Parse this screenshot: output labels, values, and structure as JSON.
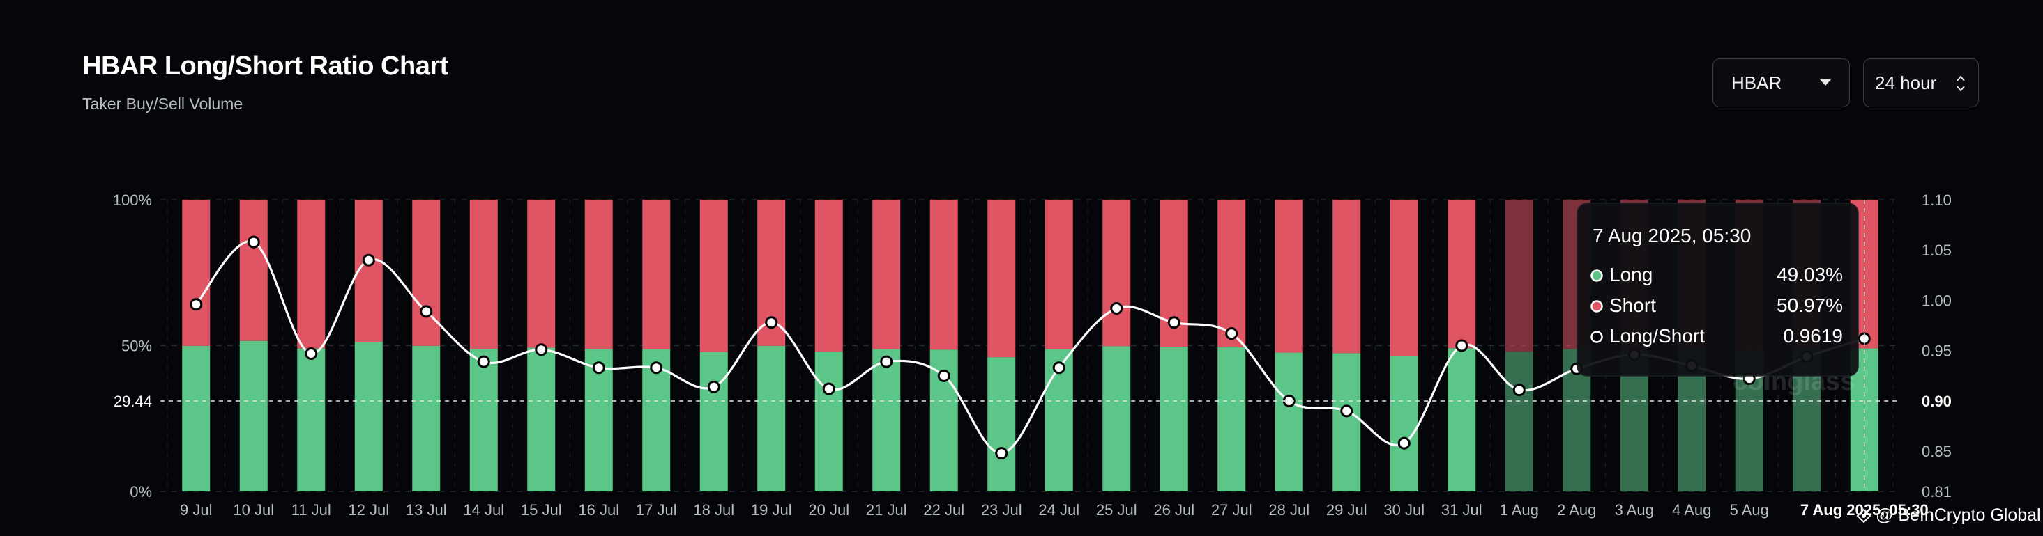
{
  "header": {
    "title": "HBAR Long/Short Ratio Chart",
    "subtitle": "Taker Buy/Sell Volume"
  },
  "controls": {
    "coin": "HBAR",
    "range": "24 hour"
  },
  "colors": {
    "long": "#5cc688",
    "short": "#e05563",
    "line": "#ffffff",
    "background": "#05060a"
  },
  "chart_data": {
    "type": "bar",
    "categories": [
      "9 Jul",
      "10 Jul",
      "11 Jul",
      "12 Jul",
      "13 Jul",
      "14 Jul",
      "15 Jul",
      "16 Jul",
      "17 Jul",
      "18 Jul",
      "19 Jul",
      "20 Jul",
      "21 Jul",
      "22 Jul",
      "23 Jul",
      "24 Jul",
      "25 Jul",
      "26 Jul",
      "27 Jul",
      "28 Jul",
      "29 Jul",
      "30 Jul",
      "31 Jul",
      "1 Aug",
      "2 Aug",
      "3 Aug",
      "4 Aug",
      "5 Aug",
      "6 Aug",
      "7 Aug 2025, 05:30"
    ],
    "x_tick_labels": [
      "9 Jul",
      "10 Jul",
      "11 Jul",
      "12 Jul",
      "13 Jul",
      "14 Jul",
      "15 Jul",
      "16 Jul",
      "17 Jul",
      "18 Jul",
      "19 Jul",
      "20 Jul",
      "21 Jul",
      "22 Jul",
      "23 Jul",
      "24 Jul",
      "25 Jul",
      "26 Jul",
      "27 Jul",
      "28 Jul",
      "29 Jul",
      "30 Jul",
      "31 Jul",
      "1 Aug",
      "2 Aug",
      "3 Aug",
      "4 Aug",
      "5 Aug",
      "6",
      "7 Aug 2025, 05:30"
    ],
    "series": [
      {
        "name": "Long",
        "values": [
          49.9,
          51.6,
          49.0,
          51.3,
          49.9,
          48.9,
          49.3,
          48.9,
          48.8,
          47.8,
          49.9,
          47.9,
          48.8,
          48.6,
          46.0,
          48.8,
          49.8,
          49.6,
          49.4,
          47.6,
          47.4,
          46.3,
          49.1,
          47.9,
          48.8,
          48.6,
          48.8,
          48.1,
          48.6,
          49.03
        ]
      },
      {
        "name": "Short",
        "values": [
          50.1,
          48.4,
          51.0,
          48.7,
          50.1,
          51.1,
          50.7,
          51.1,
          51.2,
          52.2,
          50.1,
          52.1,
          51.2,
          51.4,
          54.0,
          51.2,
          50.2,
          50.4,
          50.6,
          52.4,
          52.6,
          53.7,
          50.9,
          52.1,
          51.2,
          51.4,
          51.2,
          51.9,
          51.4,
          50.97
        ]
      },
      {
        "name": "Long/Short",
        "values": [
          0.996,
          1.058,
          0.947,
          1.04,
          0.989,
          0.939,
          0.951,
          0.933,
          0.933,
          0.914,
          0.978,
          0.912,
          0.939,
          0.925,
          0.848,
          0.933,
          0.992,
          0.978,
          0.967,
          0.9,
          0.89,
          0.858,
          0.955,
          0.911,
          0.932,
          0.946,
          0.935,
          0.922,
          0.944,
          0.9619
        ]
      }
    ],
    "y_left_ticks": [
      "100%",
      "50%",
      "0%"
    ],
    "y_left_range": [
      0,
      100
    ],
    "y_right_ticks": [
      "1.10",
      "1.05",
      "1.00",
      "0.95",
      "0.90",
      "0.85",
      "0.81"
    ],
    "y_right_range": [
      0.81,
      1.1
    ],
    "crosshair": {
      "left_label": "29.44",
      "right_label": "0.90",
      "right_value": 0.9
    },
    "tooltip": {
      "date": "7 Aug 2025, 05:30",
      "rows": [
        {
          "label": "Long",
          "value": "49.03%"
        },
        {
          "label": "Short",
          "value": "50.97%"
        },
        {
          "label": "Long/Short",
          "value": "0.9619"
        }
      ]
    },
    "grid": true,
    "legend": "none"
  },
  "watermark": {
    "text": "@ BeInCrypto Global",
    "faint_logo": "coinglass"
  }
}
